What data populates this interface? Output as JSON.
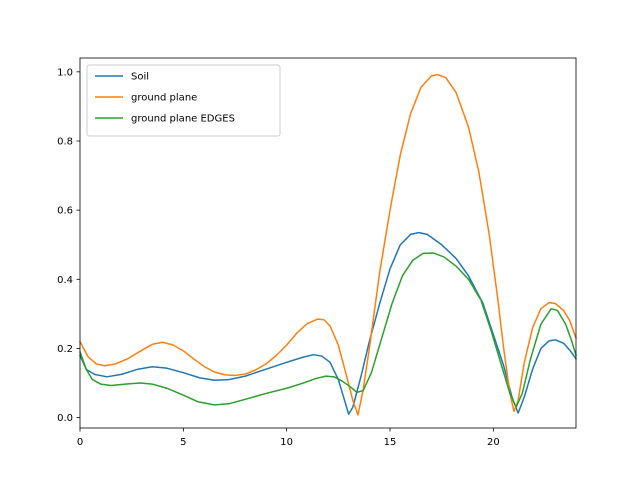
{
  "chart_data": {
    "type": "line",
    "title": "",
    "xlabel": "",
    "ylabel": "",
    "xlim": [
      0,
      24
    ],
    "ylim": [
      -0.03,
      1.04
    ],
    "xticks": [
      0,
      5,
      10,
      15,
      20
    ],
    "xtick_labels": [
      "0",
      "5",
      "10",
      "15",
      "20"
    ],
    "yticks": [
      0.0,
      0.2,
      0.4,
      0.6,
      0.8,
      1.0
    ],
    "ytick_labels": [
      "0.0",
      "0.2",
      "0.4",
      "0.6",
      "0.8",
      "1.0"
    ],
    "grid": false,
    "legend_position": "upper-left",
    "series": [
      {
        "name": "Soil",
        "color": "#1f77b4",
        "points": [
          [
            0,
            0.18
          ],
          [
            0.3,
            0.14
          ],
          [
            0.7,
            0.125
          ],
          [
            1.3,
            0.118
          ],
          [
            2,
            0.125
          ],
          [
            2.8,
            0.14
          ],
          [
            3.5,
            0.147
          ],
          [
            4.2,
            0.143
          ],
          [
            5,
            0.13
          ],
          [
            5.8,
            0.115
          ],
          [
            6.5,
            0.108
          ],
          [
            7.2,
            0.11
          ],
          [
            8,
            0.12
          ],
          [
            9,
            0.14
          ],
          [
            10,
            0.16
          ],
          [
            10.8,
            0.175
          ],
          [
            11.3,
            0.182
          ],
          [
            11.7,
            0.178
          ],
          [
            12.1,
            0.16
          ],
          [
            12.5,
            0.11
          ],
          [
            12.8,
            0.05
          ],
          [
            13,
            0.01
          ],
          [
            13.2,
            0.03
          ],
          [
            13.6,
            0.12
          ],
          [
            14,
            0.22
          ],
          [
            14.5,
            0.33
          ],
          [
            15,
            0.43
          ],
          [
            15.5,
            0.5
          ],
          [
            16,
            0.53
          ],
          [
            16.4,
            0.535
          ],
          [
            16.8,
            0.53
          ],
          [
            17.5,
            0.5
          ],
          [
            18.2,
            0.46
          ],
          [
            18.8,
            0.41
          ],
          [
            19.5,
            0.33
          ],
          [
            20,
            0.24
          ],
          [
            20.5,
            0.15
          ],
          [
            20.9,
            0.06
          ],
          [
            21.2,
            0.013
          ],
          [
            21.5,
            0.06
          ],
          [
            21.9,
            0.14
          ],
          [
            22.3,
            0.2
          ],
          [
            22.7,
            0.222
          ],
          [
            23,
            0.225
          ],
          [
            23.4,
            0.215
          ],
          [
            23.7,
            0.195
          ],
          [
            24,
            0.17
          ]
        ]
      },
      {
        "name": "ground plane",
        "color": "#ff7f0e",
        "points": [
          [
            0,
            0.22
          ],
          [
            0.4,
            0.175
          ],
          [
            0.8,
            0.155
          ],
          [
            1.2,
            0.15
          ],
          [
            1.7,
            0.155
          ],
          [
            2.3,
            0.17
          ],
          [
            3,
            0.195
          ],
          [
            3.5,
            0.212
          ],
          [
            4,
            0.218
          ],
          [
            4.5,
            0.21
          ],
          [
            5,
            0.193
          ],
          [
            5.5,
            0.17
          ],
          [
            6,
            0.148
          ],
          [
            6.5,
            0.132
          ],
          [
            7,
            0.124
          ],
          [
            7.5,
            0.122
          ],
          [
            8,
            0.126
          ],
          [
            8.5,
            0.138
          ],
          [
            9,
            0.155
          ],
          [
            9.5,
            0.18
          ],
          [
            10,
            0.21
          ],
          [
            10.5,
            0.245
          ],
          [
            11,
            0.272
          ],
          [
            11.5,
            0.285
          ],
          [
            11.8,
            0.283
          ],
          [
            12.1,
            0.265
          ],
          [
            12.5,
            0.21
          ],
          [
            12.9,
            0.12
          ],
          [
            13.2,
            0.05
          ],
          [
            13.45,
            0.008
          ],
          [
            13.7,
            0.08
          ],
          [
            14,
            0.2
          ],
          [
            14.5,
            0.42
          ],
          [
            15,
            0.6
          ],
          [
            15.5,
            0.76
          ],
          [
            16,
            0.88
          ],
          [
            16.5,
            0.955
          ],
          [
            17,
            0.988
          ],
          [
            17.3,
            0.992
          ],
          [
            17.7,
            0.983
          ],
          [
            18.2,
            0.94
          ],
          [
            18.8,
            0.84
          ],
          [
            19.3,
            0.71
          ],
          [
            19.8,
            0.53
          ],
          [
            20.2,
            0.35
          ],
          [
            20.5,
            0.2
          ],
          [
            20.8,
            0.07
          ],
          [
            21,
            0.018
          ],
          [
            21.2,
            0.05
          ],
          [
            21.5,
            0.16
          ],
          [
            21.9,
            0.26
          ],
          [
            22.3,
            0.315
          ],
          [
            22.7,
            0.333
          ],
          [
            23,
            0.33
          ],
          [
            23.4,
            0.31
          ],
          [
            23.7,
            0.28
          ],
          [
            24,
            0.23
          ]
        ]
      },
      {
        "name": "ground plane EDGES",
        "color": "#2ca02c",
        "points": [
          [
            0,
            0.19
          ],
          [
            0.3,
            0.14
          ],
          [
            0.6,
            0.11
          ],
          [
            1,
            0.097
          ],
          [
            1.5,
            0.093
          ],
          [
            2.2,
            0.097
          ],
          [
            2.9,
            0.1
          ],
          [
            3.5,
            0.097
          ],
          [
            4.2,
            0.085
          ],
          [
            5,
            0.065
          ],
          [
            5.7,
            0.046
          ],
          [
            6.5,
            0.037
          ],
          [
            7.2,
            0.04
          ],
          [
            8,
            0.053
          ],
          [
            9,
            0.07
          ],
          [
            10,
            0.085
          ],
          [
            10.8,
            0.1
          ],
          [
            11.4,
            0.113
          ],
          [
            11.9,
            0.12
          ],
          [
            12.3,
            0.118
          ],
          [
            12.7,
            0.105
          ],
          [
            13.1,
            0.088
          ],
          [
            13.4,
            0.073
          ],
          [
            13.7,
            0.078
          ],
          [
            14.1,
            0.13
          ],
          [
            14.6,
            0.23
          ],
          [
            15.1,
            0.33
          ],
          [
            15.6,
            0.41
          ],
          [
            16.1,
            0.455
          ],
          [
            16.6,
            0.475
          ],
          [
            17.1,
            0.476
          ],
          [
            17.6,
            0.465
          ],
          [
            18.2,
            0.438
          ],
          [
            18.8,
            0.4
          ],
          [
            19.4,
            0.34
          ],
          [
            19.9,
            0.25
          ],
          [
            20.4,
            0.15
          ],
          [
            20.8,
            0.07
          ],
          [
            21.1,
            0.03
          ],
          [
            21.4,
            0.07
          ],
          [
            21.8,
            0.17
          ],
          [
            22.3,
            0.27
          ],
          [
            22.8,
            0.315
          ],
          [
            23.1,
            0.31
          ],
          [
            23.5,
            0.27
          ],
          [
            23.8,
            0.22
          ],
          [
            24,
            0.18
          ]
        ]
      }
    ]
  }
}
